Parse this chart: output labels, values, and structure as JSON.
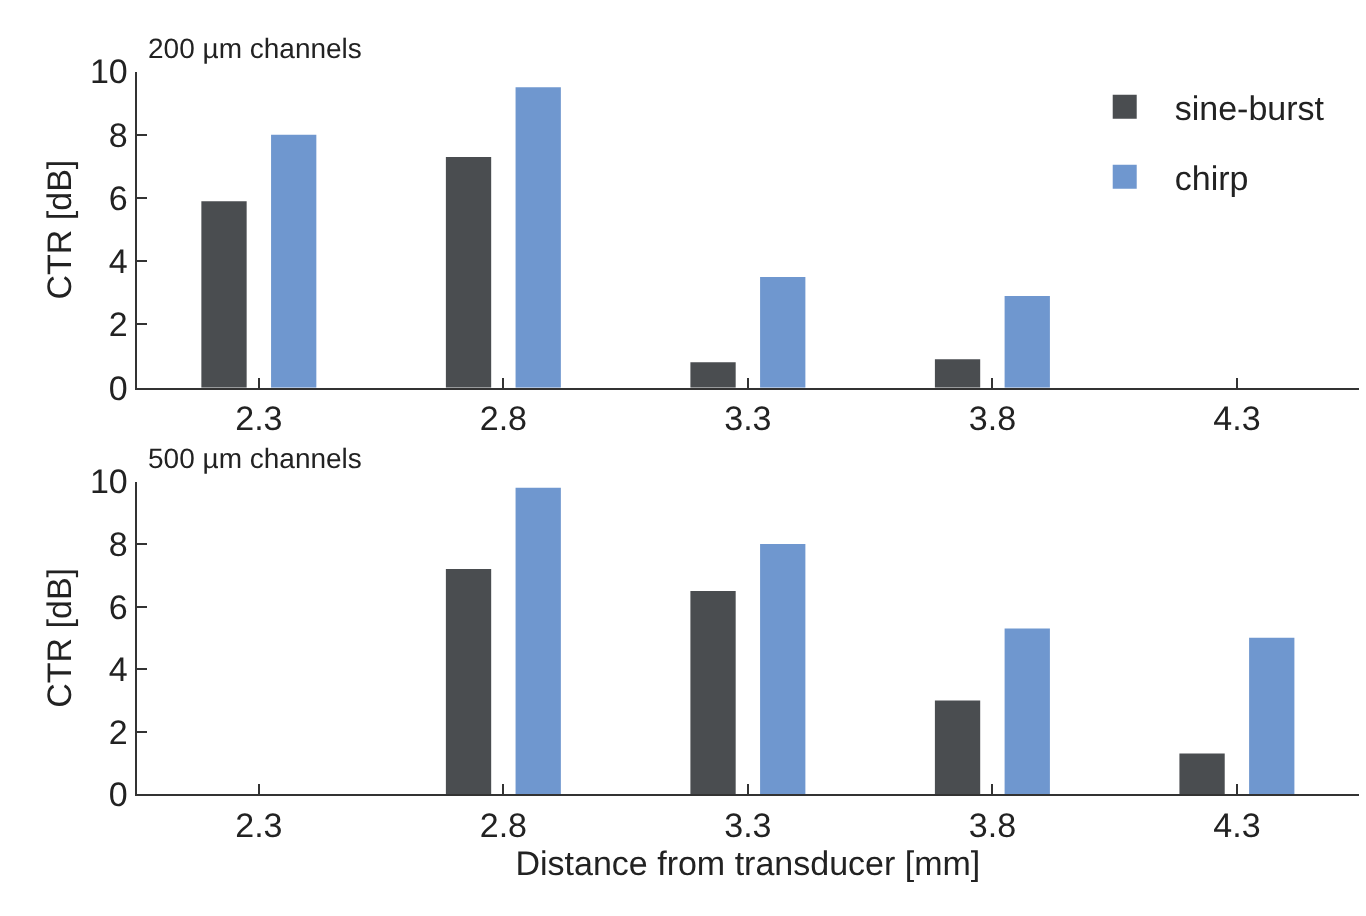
{
  "chart_data": [
    {
      "type": "bar",
      "title": "200 µm channels",
      "ylabel": "CTR [dB]",
      "categories": [
        "2.3",
        "2.8",
        "3.3",
        "3.8",
        "4.3"
      ],
      "series": [
        {
          "name": "sine-burst",
          "color": "#4a4d50",
          "values": [
            5.9,
            7.3,
            0.8,
            0.9,
            null
          ]
        },
        {
          "name": "chirp",
          "color": "#6f97cf",
          "values": [
            8.0,
            9.5,
            3.5,
            2.9,
            null
          ]
        }
      ],
      "ylim": [
        0,
        10
      ],
      "yticks": [
        0,
        2,
        4,
        6,
        8,
        10
      ],
      "legend": "top right"
    },
    {
      "type": "bar",
      "title": "500 µm channels",
      "ylabel": "CTR [dB]",
      "xlabel": "Distance from transducer [mm]",
      "categories": [
        "2.3",
        "2.8",
        "3.3",
        "3.8",
        "4.3"
      ],
      "series": [
        {
          "color": "#4a4d50",
          "values": [
            null,
            7.2,
            6.5,
            3.0,
            1.3
          ]
        },
        {
          "color": "#6f97cf",
          "values": [
            null,
            9.8,
            8.0,
            5.3,
            5.0
          ]
        }
      ],
      "ylim": [
        0,
        10
      ],
      "yticks": [
        0,
        2,
        4,
        6,
        8,
        10
      ]
    }
  ]
}
